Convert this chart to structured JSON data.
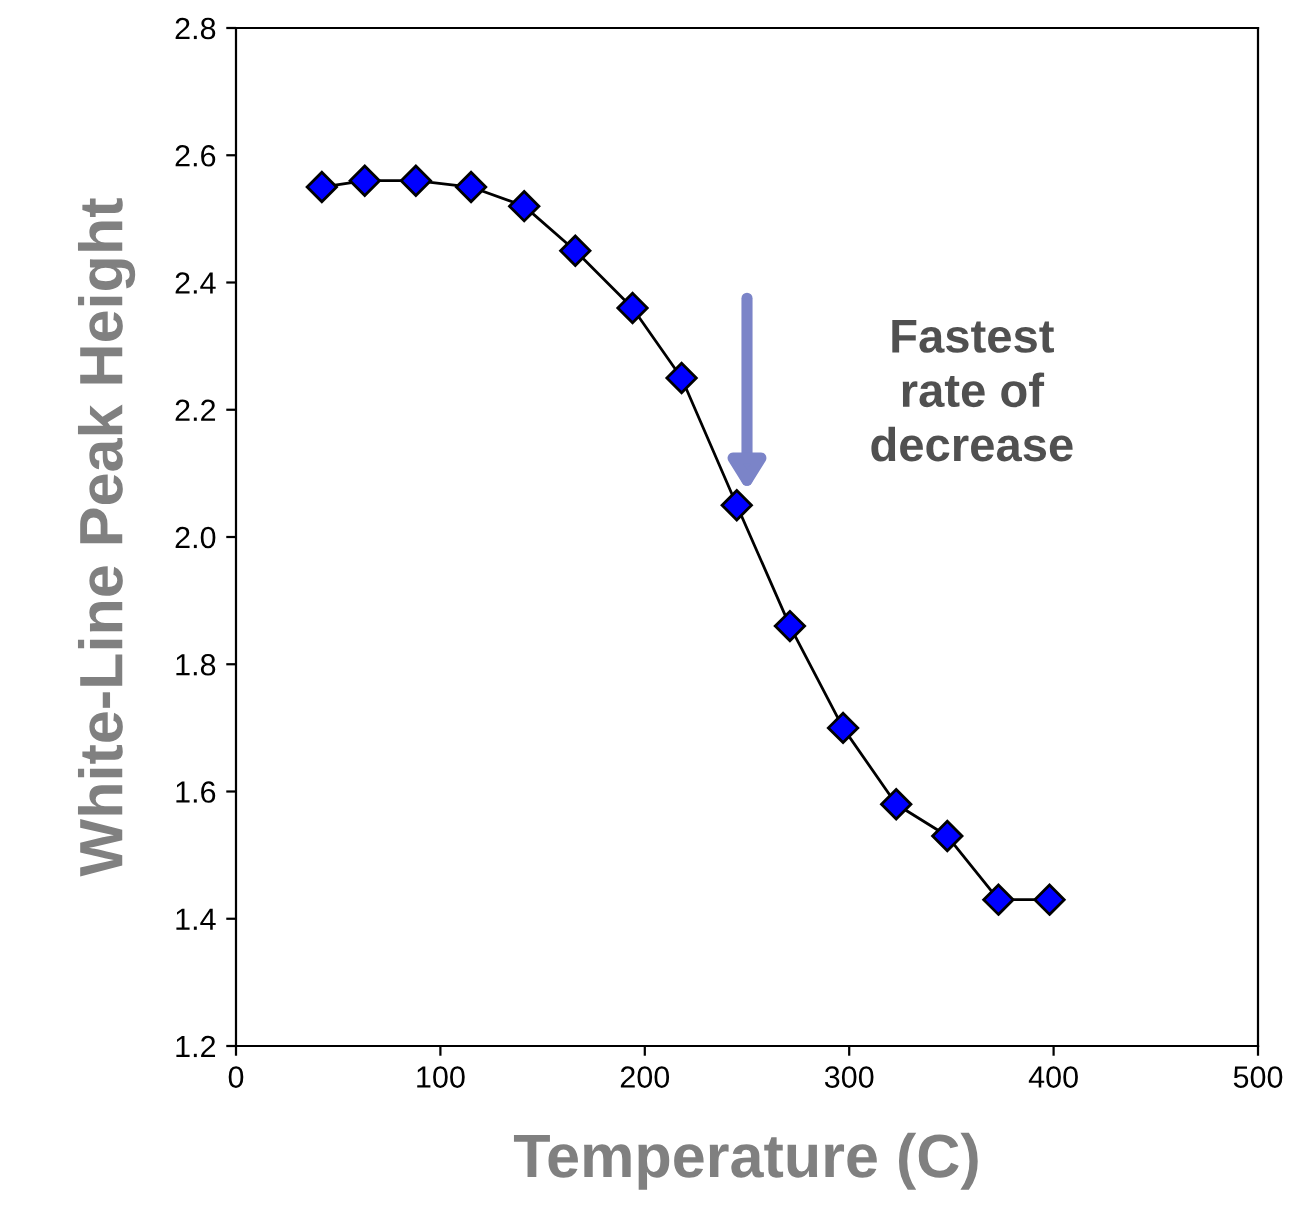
{
  "chart_data": {
    "type": "line",
    "xlabel": "Temperature (C)",
    "ylabel": "White-Line Peak Height",
    "x": [
      42,
      63,
      88,
      115,
      141,
      166,
      194,
      218,
      245,
      271,
      297,
      323,
      348,
      373,
      398
    ],
    "series": [
      {
        "color": "#0000ff",
        "values": [
          2.55,
          2.56,
          2.56,
          2.55,
          2.52,
          2.45,
          2.36,
          2.25,
          2.05,
          1.86,
          1.7,
          1.58,
          1.53,
          1.43,
          1.43
        ]
      }
    ],
    "xlim": [
      0,
      500
    ],
    "xticks": [
      0,
      100,
      200,
      300,
      400,
      500
    ],
    "ylim": [
      1.2,
      2.8
    ],
    "yticks": [
      {
        "value": 1.2,
        "label": "1.2"
      },
      {
        "value": 1.4,
        "label": "1.4"
      },
      {
        "value": 1.6,
        "label": "1.6"
      },
      {
        "value": 1.8,
        "label": "1.8"
      },
      {
        "value": 2.0,
        "label": "2.0"
      },
      {
        "value": 2.2,
        "label": "2.2"
      },
      {
        "value": 2.4,
        "label": "2.4"
      },
      {
        "value": 2.6,
        "label": "2.6"
      },
      {
        "value": 2.8,
        "label": "2.8"
      }
    ],
    "annotations": [
      "Fastest\nrate of\ndecrease"
    ],
    "marker": "diamond",
    "line_style": "solid",
    "grid": false,
    "legend": false
  }
}
